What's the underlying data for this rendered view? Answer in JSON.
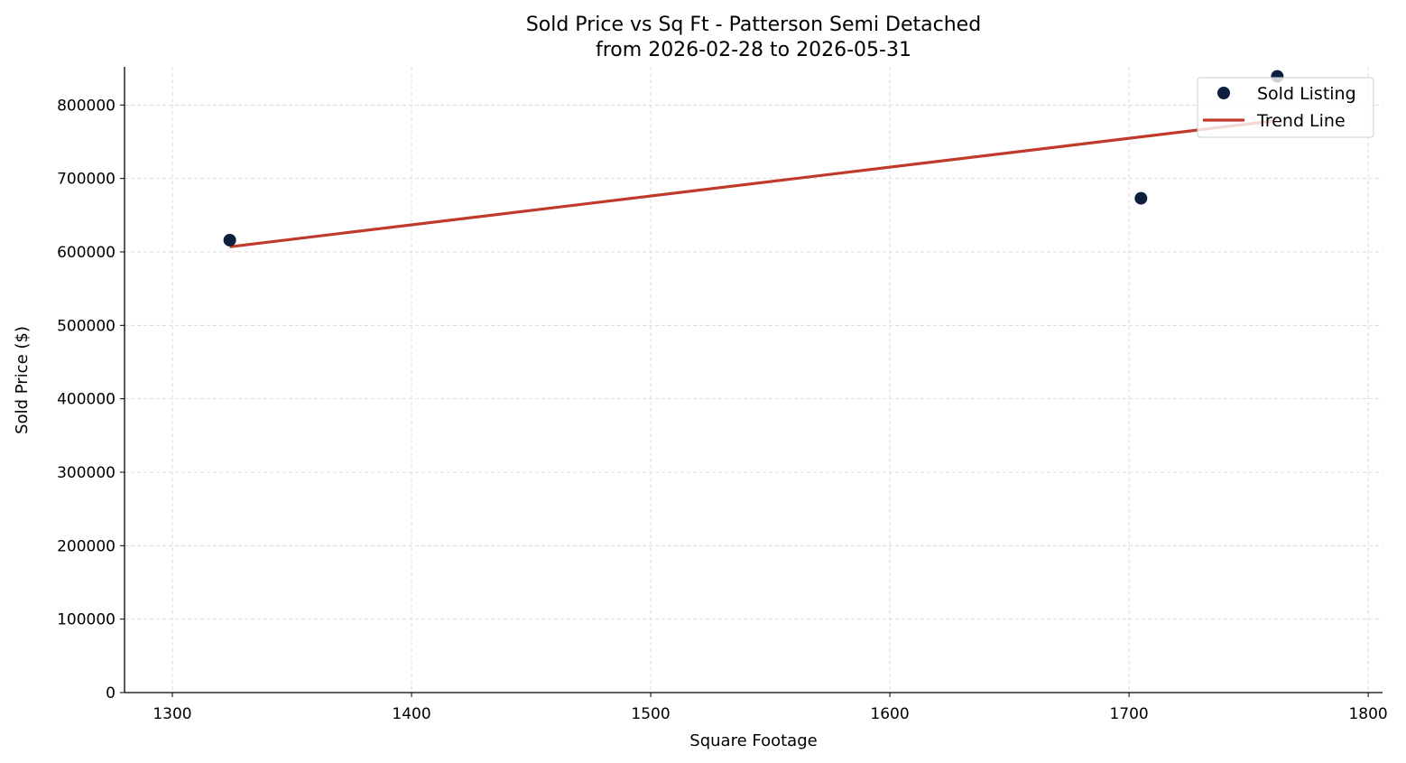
{
  "chart_data": {
    "type": "scatter",
    "title_line1": "Sold Price vs Sq Ft - Patterson Semi Detached",
    "title_line2": "from 2026-02-28 to 2026-05-31",
    "xlabel": "Square Footage",
    "ylabel": "Sold Price ($)",
    "xlim": [
      1280,
      1806
    ],
    "ylim": [
      0,
      852000
    ],
    "xticks": [
      1300,
      1400,
      1500,
      1600,
      1700,
      1800
    ],
    "yticks": [
      0,
      100000,
      200000,
      300000,
      400000,
      500000,
      600000,
      700000,
      800000
    ],
    "grid": true,
    "legend_position": "top-right",
    "series": [
      {
        "name": "Sold Listing",
        "kind": "scatter",
        "color": "#0d1f3c",
        "points": [
          {
            "x": 1324,
            "y": 616000
          },
          {
            "x": 1705,
            "y": 673000
          },
          {
            "x": 1762,
            "y": 839000
          }
        ]
      },
      {
        "name": "Trend Line",
        "kind": "line",
        "color": "#c0392b",
        "points": [
          {
            "x": 1324,
            "y": 607000
          },
          {
            "x": 1762,
            "y": 779000
          }
        ]
      }
    ]
  }
}
